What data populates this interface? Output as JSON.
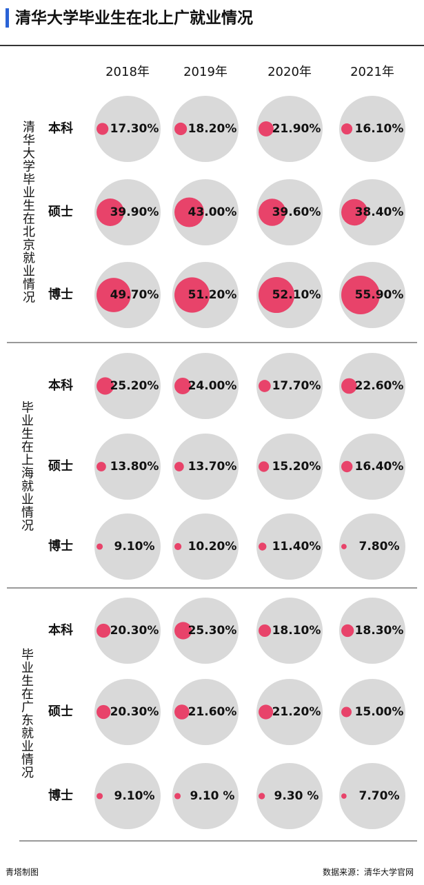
{
  "chart_data": {
    "type": "bubble-grid",
    "title": "清华大学毕业生在北上广就业情况",
    "columns": [
      "2018年",
      "2019年",
      "2020年",
      "2021年"
    ],
    "color": "#e8436a",
    "groups": [
      {
        "name": "清华大学毕业生在北京就业情况",
        "rows": [
          {
            "name": "本科",
            "values": [
              17.3,
              18.2,
              21.9,
              16.1
            ],
            "value_labels": [
              "17.30%",
              "18.20%",
              "21.90%",
              "16.10%"
            ]
          },
          {
            "name": "硕士",
            "values": [
              39.9,
              43.0,
              39.6,
              38.4
            ],
            "value_labels": [
              "39.90%",
              "43.00%",
              "39.60%",
              "38.40%"
            ]
          },
          {
            "name": "博士",
            "values": [
              49.7,
              51.2,
              52.1,
              55.9
            ],
            "value_labels": [
              "49.70%",
              "51.20%",
              "52.10%",
              "55.90%"
            ]
          }
        ]
      },
      {
        "name": "毕业生在上海就业情况",
        "rows": [
          {
            "name": "本科",
            "values": [
              25.2,
              24.0,
              17.7,
              22.6
            ],
            "value_labels": [
              "25.20%",
              "24.00%",
              "17.70%",
              "22.60%"
            ]
          },
          {
            "name": "硕士",
            "values": [
              13.8,
              13.7,
              15.2,
              16.4
            ],
            "value_labels": [
              "13.80%",
              "13.70%",
              "15.20%",
              "16.40%"
            ]
          },
          {
            "name": "博士",
            "values": [
              9.1,
              10.2,
              11.4,
              7.8
            ],
            "value_labels": [
              "9.10%",
              "10.20%",
              "11.40%",
              "7.80%"
            ]
          }
        ]
      },
      {
        "name": "毕业生在广东就业情况",
        "rows": [
          {
            "name": "本科",
            "values": [
              20.3,
              25.3,
              18.1,
              18.3
            ],
            "value_labels": [
              "20.30%",
              "25.30%",
              "18.10%",
              "18.30%"
            ]
          },
          {
            "name": "硕士",
            "values": [
              20.3,
              21.6,
              21.2,
              15.0
            ],
            "value_labels": [
              "20.30%",
              "21.60%",
              "21.20%",
              "15.00%"
            ]
          },
          {
            "name": "博士",
            "values": [
              9.1,
              9.1,
              9.3,
              7.7
            ],
            "value_labels": [
              "9.10%",
              "9.10 %",
              "9.30 %",
              "7.70%"
            ]
          }
        ]
      }
    ],
    "credit": "青塔制图",
    "source": "数据来源：清华大学官网"
  }
}
